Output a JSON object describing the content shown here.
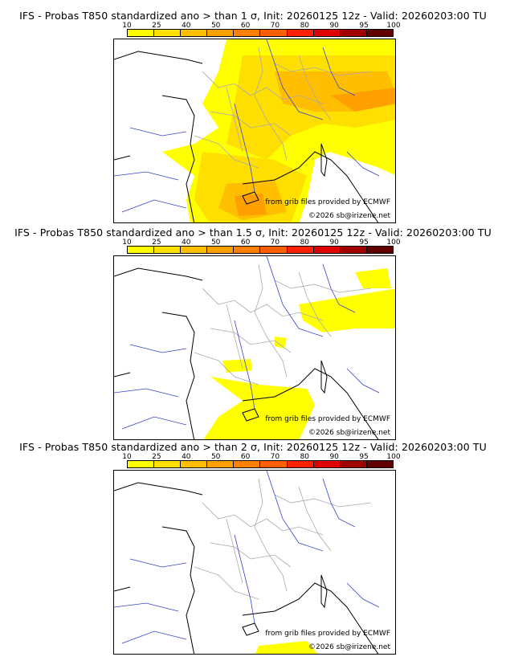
{
  "colorbar": {
    "ticks": [
      "10",
      "25",
      "40",
      "50",
      "60",
      "70",
      "80",
      "90",
      "95",
      "100"
    ],
    "colors": [
      "#ffff00",
      "#ffdf00",
      "#ffbf00",
      "#ff9f00",
      "#ff8000",
      "#ff5f00",
      "#ff2000",
      "#df0000",
      "#a00000",
      "#600000"
    ]
  },
  "credits": {
    "source": "from grib files provided by ECMWF",
    "copyright": "©2026 sb@irizene.net"
  },
  "panels": [
    {
      "title": "IFS - Probas T850  standardized ano > than 1 σ, Init: 20260125 12z - Valid: 20260203:00 TU",
      "threshold": "1 sigma"
    },
    {
      "title": "IFS - Probas T850  standardized ano > than 1.5 σ, Init: 20260125 12z - Valid: 20260203:00 TU",
      "threshold": "1.5 sigma"
    },
    {
      "title": "IFS - Probas T850  standardized ano > than 2 σ, Init: 20260125 12z - Valid: 20260203:00 TU",
      "threshold": "2 sigma"
    }
  ]
}
